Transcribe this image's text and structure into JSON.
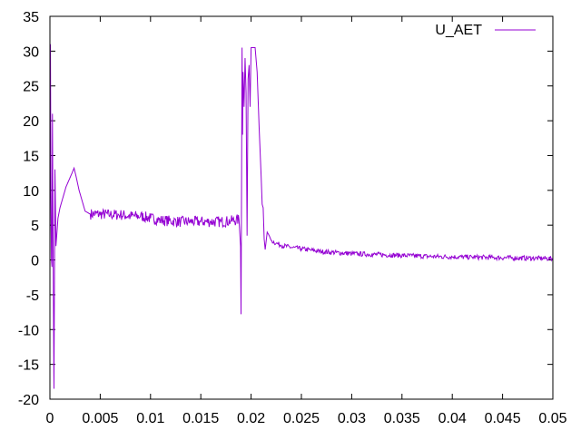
{
  "chart_data": {
    "type": "line",
    "title": "",
    "xlabel": "",
    "ylabel": "",
    "xlim": [
      0,
      0.05
    ],
    "ylim": [
      -20,
      35
    ],
    "x_ticks": [
      0,
      0.005,
      0.01,
      0.015,
      0.02,
      0.025,
      0.03,
      0.035,
      0.04,
      0.045,
      0.05
    ],
    "x_tick_labels": [
      "0",
      "0.005",
      "0.01",
      "0.015",
      "0.02",
      "0.025",
      "0.03",
      "0.035",
      "0.04",
      "0.045",
      "0.05"
    ],
    "y_ticks": [
      -20,
      -15,
      -10,
      -5,
      0,
      5,
      10,
      15,
      20,
      25,
      30,
      35
    ],
    "y_tick_labels": [
      "-20",
      "-15",
      "-10",
      "-5",
      "0",
      "5",
      "10",
      "15",
      "20",
      "25",
      "30",
      "35"
    ],
    "grid": false,
    "legend_position": "top-right",
    "series": [
      {
        "name": "U_AET",
        "color": "#9400d3",
        "points": [
          [
            0,
            0
          ],
          [
            5e-05,
            31
          ],
          [
            0.0001,
            10
          ],
          [
            0.00015,
            0
          ],
          [
            0.0002,
            -1
          ],
          [
            0.00025,
            21
          ],
          [
            0.0003,
            5
          ],
          [
            0.0004,
            -18.5
          ],
          [
            0.0005,
            13
          ],
          [
            0.0006,
            2
          ],
          [
            0.0008,
            6
          ],
          [
            0.001,
            7.5
          ],
          [
            0.0013,
            9
          ],
          [
            0.0016,
            10.5
          ],
          [
            0.0019,
            11.5
          ],
          [
            0.0022,
            12.5
          ],
          [
            0.0024,
            13.2
          ],
          [
            0.0026,
            12
          ],
          [
            0.0029,
            10
          ],
          [
            0.0032,
            8.5
          ],
          [
            0.0035,
            7
          ],
          [
            0.004,
            6.6
          ],
          [
            0.005,
            6.6
          ],
          [
            0.006,
            6.5
          ],
          [
            0.007,
            6.5
          ],
          [
            0.008,
            6.3
          ],
          [
            0.009,
            6.3
          ],
          [
            0.01,
            6
          ],
          [
            0.011,
            5.7
          ],
          [
            0.012,
            5.6
          ],
          [
            0.013,
            5.5
          ],
          [
            0.014,
            5.5
          ],
          [
            0.015,
            5.5
          ],
          [
            0.016,
            5.5
          ],
          [
            0.017,
            5.5
          ],
          [
            0.018,
            5.6
          ],
          [
            0.0188,
            5.8
          ],
          [
            0.01895,
            2
          ],
          [
            0.019,
            -7.8
          ],
          [
            0.01905,
            10
          ],
          [
            0.0191,
            30.5
          ],
          [
            0.01915,
            18
          ],
          [
            0.0192,
            27
          ],
          [
            0.0193,
            22
          ],
          [
            0.0194,
            29
          ],
          [
            0.0195,
            24
          ],
          [
            0.0196,
            3.5
          ],
          [
            0.0197,
            26
          ],
          [
            0.0198,
            28
          ],
          [
            0.0199,
            22
          ],
          [
            0.02,
            30.5
          ],
          [
            0.0202,
            30.5
          ],
          [
            0.0204,
            30.5
          ],
          [
            0.0206,
            27
          ],
          [
            0.0208,
            19
          ],
          [
            0.021,
            12
          ],
          [
            0.0211,
            8
          ],
          [
            0.0212,
            7.5
          ],
          [
            0.0213,
            3
          ],
          [
            0.0214,
            1.5
          ],
          [
            0.0216,
            4
          ],
          [
            0.0218,
            3.5
          ],
          [
            0.022,
            2.8
          ],
          [
            0.0225,
            2.4
          ],
          [
            0.023,
            2.1
          ],
          [
            0.024,
            1.8
          ],
          [
            0.025,
            1.6
          ],
          [
            0.026,
            1.4
          ],
          [
            0.027,
            1.2
          ],
          [
            0.028,
            1.1
          ],
          [
            0.029,
            1.0
          ],
          [
            0.03,
            0.9
          ],
          [
            0.032,
            0.8
          ],
          [
            0.034,
            0.7
          ],
          [
            0.036,
            0.6
          ],
          [
            0.038,
            0.5
          ],
          [
            0.04,
            0.45
          ],
          [
            0.042,
            0.4
          ],
          [
            0.044,
            0.35
          ],
          [
            0.046,
            0.3
          ],
          [
            0.048,
            0.25
          ],
          [
            0.05,
            0.2
          ]
        ]
      }
    ]
  }
}
